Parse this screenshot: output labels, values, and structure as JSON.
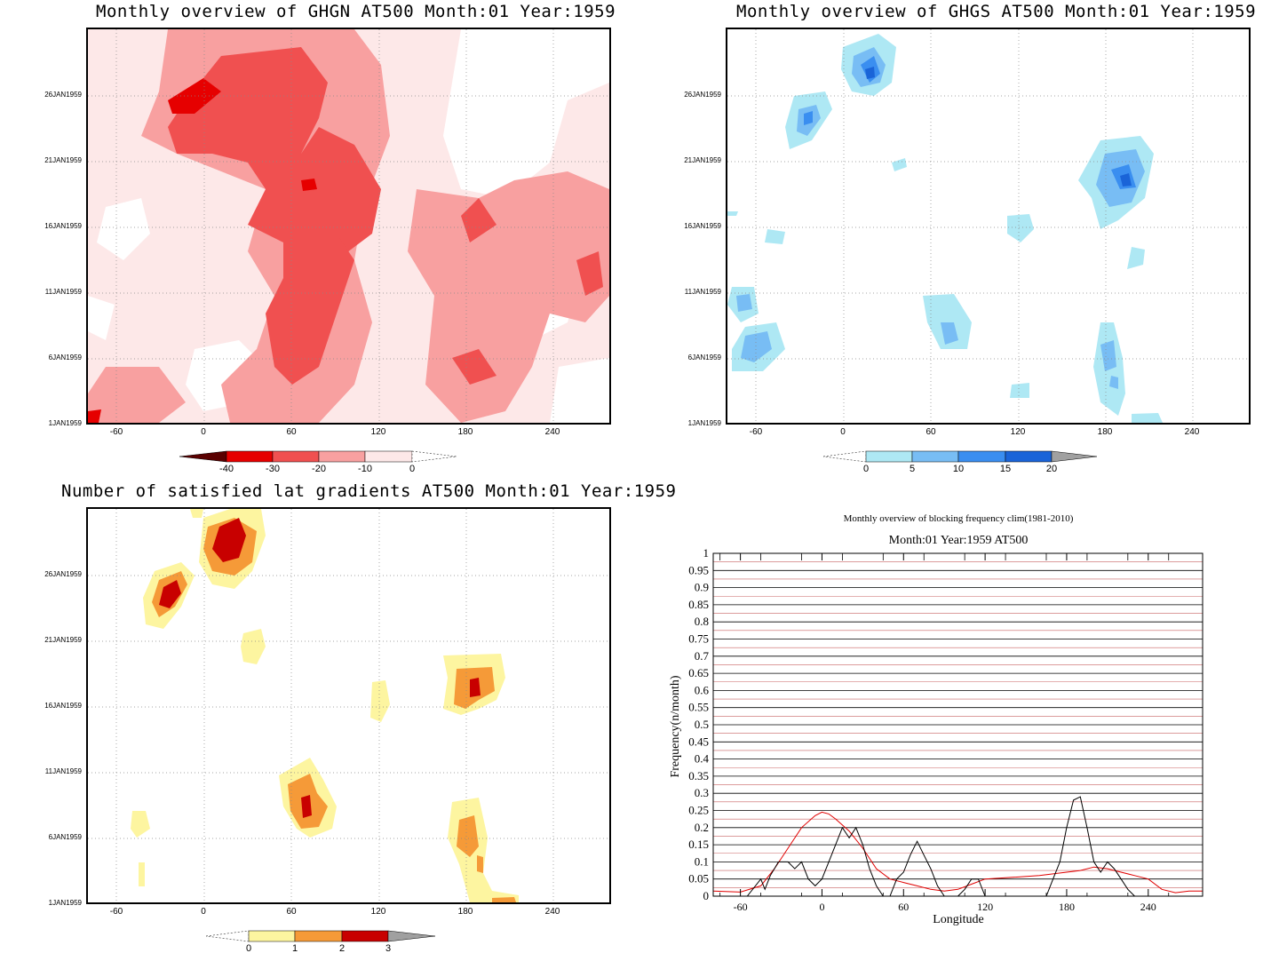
{
  "panels": {
    "ghgn": {
      "title": "Monthly overview of GHGN AT500 Month:01 Year:1959",
      "y_ticks": [
        "26JAN1959",
        "21JAN1959",
        "16JAN1959",
        "11JAN1959",
        "6JAN1959",
        "1JAN1959"
      ],
      "x_ticks": [
        "-60",
        "0",
        "60",
        "120",
        "180",
        "240"
      ],
      "colorbar": {
        "labels": [
          "-40",
          "-30",
          "-20",
          "-10",
          "0"
        ],
        "colors": [
          "#5a0000",
          "#e60000",
          "#f05050",
          "#f8a0a0",
          "#fde8e8",
          "#ffffff"
        ]
      }
    },
    "ghgs": {
      "title": "Monthly overview of GHGS AT500 Month:01 Year:1959",
      "y_ticks": [
        "26JAN1959",
        "21JAN1959",
        "16JAN1959",
        "11JAN1959",
        "6JAN1959",
        "1JAN1959"
      ],
      "x_ticks": [
        "-60",
        "0",
        "60",
        "120",
        "180",
        "240"
      ],
      "colorbar": {
        "labels": [
          "0",
          "5",
          "10",
          "15",
          "20"
        ],
        "colors": [
          "#ffffff",
          "#aee8f4",
          "#78bdf4",
          "#3a8ef0",
          "#1a64d8",
          "#a0a0a0"
        ]
      }
    },
    "lat": {
      "title": "Number of satisfied lat gradients AT500 Month:01 Year:1959",
      "y_ticks": [
        "26JAN1959",
        "21JAN1959",
        "16JAN1959",
        "11JAN1959",
        "6JAN1959",
        "1JAN1959"
      ],
      "x_ticks": [
        "-60",
        "0",
        "60",
        "120",
        "180",
        "240"
      ],
      "colorbar": {
        "labels": [
          "0",
          "1",
          "2",
          "3"
        ],
        "colors": [
          "#ffffff",
          "#fdf5a0",
          "#f59a38",
          "#c80000",
          "#a0a0a0"
        ]
      }
    }
  },
  "chart_data": [
    {
      "type": "heatmap",
      "title": "Monthly overview of GHGN AT500 Month:01 Year:1959",
      "x_ticks": [
        -60,
        0,
        60,
        120,
        180,
        240
      ],
      "y_ticks": [
        "1JAN1959",
        "6JAN1959",
        "11JAN1959",
        "16JAN1959",
        "21JAN1959",
        "26JAN1959"
      ],
      "xlim": [
        -80,
        280
      ],
      "levels": [
        -40,
        -30,
        -20,
        -10,
        0
      ],
      "colors": [
        "#5a0000",
        "#e60000",
        "#f05050",
        "#f8a0a0",
        "#fde8e8",
        "#ffffff"
      ]
    },
    {
      "type": "heatmap",
      "title": "Monthly overview of GHGS AT500 Month:01 Year:1959",
      "x_ticks": [
        -60,
        0,
        60,
        120,
        180,
        240
      ],
      "y_ticks": [
        "1JAN1959",
        "6JAN1959",
        "11JAN1959",
        "16JAN1959",
        "21JAN1959",
        "26JAN1959"
      ],
      "xlim": [
        -80,
        280
      ],
      "levels": [
        0,
        5,
        10,
        15,
        20
      ],
      "colors": [
        "#ffffff",
        "#aee8f4",
        "#78bdf4",
        "#3a8ef0",
        "#1a64d8",
        "#a0a0a0"
      ]
    },
    {
      "type": "heatmap",
      "title": "Number of satisfied lat gradients AT500 Month:01 Year:1959",
      "x_ticks": [
        -60,
        0,
        60,
        120,
        180,
        240
      ],
      "y_ticks": [
        "1JAN1959",
        "6JAN1959",
        "11JAN1959",
        "16JAN1959",
        "21JAN1959",
        "26JAN1959"
      ],
      "xlim": [
        -80,
        280
      ],
      "levels": [
        0,
        1,
        2,
        3
      ],
      "colors": [
        "#ffffff",
        "#fdf5a0",
        "#f59a38",
        "#c80000",
        "#a0a0a0"
      ]
    },
    {
      "type": "line",
      "title": "Monthly overview of blocking frequency clim(1981-2010)",
      "subtitle": "Month:01 Year:1959  AT500",
      "xlabel": "Longitude",
      "ylabel": "Frequency(n/month)",
      "xlim": [
        -80,
        280
      ],
      "ylim": [
        0,
        1
      ],
      "x_ticks": [
        -60,
        0,
        60,
        120,
        180,
        240
      ],
      "y_ticks": [
        "0",
        "0.05",
        "0.1",
        "0.15",
        "0.2",
        "0.25",
        "0.3",
        "0.35",
        "0.4",
        "0.45",
        "0.5",
        "0.55",
        "0.6",
        "0.65",
        "0.7",
        "0.75",
        "0.8",
        "0.85",
        "0.9",
        "0.95",
        "1"
      ],
      "grid": true,
      "series": [
        {
          "color": "#e00000",
          "x": [
            -80,
            -60,
            -45,
            -35,
            -25,
            -15,
            -5,
            0,
            5,
            10,
            20,
            30,
            40,
            50,
            60,
            70,
            80,
            90,
            100,
            110,
            120,
            140,
            160,
            180,
            190,
            200,
            210,
            220,
            230,
            240,
            250,
            260,
            270,
            280
          ],
          "y": [
            0.015,
            0.012,
            0.03,
            0.08,
            0.14,
            0.2,
            0.235,
            0.245,
            0.24,
            0.225,
            0.19,
            0.14,
            0.08,
            0.05,
            0.04,
            0.03,
            0.02,
            0.015,
            0.02,
            0.035,
            0.05,
            0.055,
            0.06,
            0.07,
            0.075,
            0.085,
            0.08,
            0.07,
            0.06,
            0.05,
            0.02,
            0.01,
            0.015,
            0.015
          ]
        },
        {
          "color": "#000000",
          "x": [
            -80,
            -55,
            -45,
            -42,
            -38,
            -32,
            -25,
            -20,
            -15,
            -10,
            -5,
            0,
            5,
            10,
            15,
            20,
            25,
            30,
            35,
            40,
            45,
            50,
            55,
            60,
            65,
            70,
            75,
            80,
            85,
            90,
            95,
            100,
            105,
            110,
            115,
            120,
            160,
            165,
            170,
            175,
            180,
            185,
            190,
            195,
            200,
            205,
            210,
            215,
            220,
            225,
            230,
            280
          ],
          "y": [
            0,
            0,
            0.05,
            0.02,
            0.06,
            0.1,
            0.1,
            0.08,
            0.1,
            0.05,
            0.03,
            0.05,
            0.1,
            0.15,
            0.2,
            0.17,
            0.2,
            0.15,
            0.08,
            0.03,
            0,
            0,
            0.05,
            0.07,
            0.12,
            0.16,
            0.12,
            0.08,
            0.03,
            0,
            0,
            0,
            0.02,
            0.05,
            0.05,
            0,
            0,
            0,
            0.05,
            0.1,
            0.2,
            0.28,
            0.29,
            0.2,
            0.1,
            0.07,
            0.1,
            0.08,
            0.05,
            0.02,
            0,
            0
          ]
        }
      ]
    }
  ]
}
